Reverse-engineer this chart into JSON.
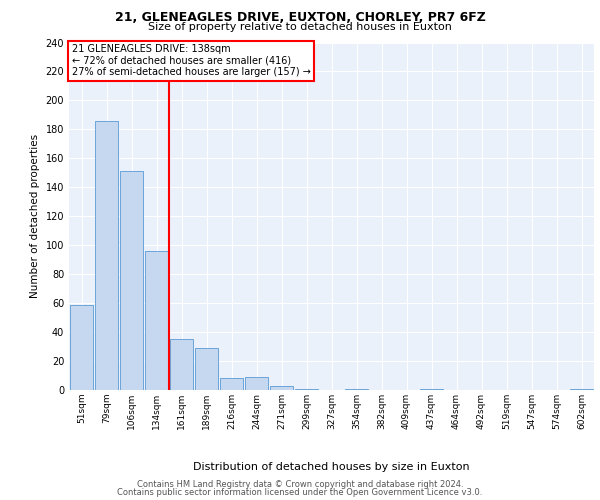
{
  "title1": "21, GLENEAGLES DRIVE, EUXTON, CHORLEY, PR7 6FZ",
  "title2": "Size of property relative to detached houses in Euxton",
  "xlabel": "Distribution of detached houses by size in Euxton",
  "ylabel": "Number of detached properties",
  "bin_labels": [
    "51sqm",
    "79sqm",
    "106sqm",
    "134sqm",
    "161sqm",
    "189sqm",
    "216sqm",
    "244sqm",
    "271sqm",
    "299sqm",
    "327sqm",
    "354sqm",
    "382sqm",
    "409sqm",
    "437sqm",
    "464sqm",
    "492sqm",
    "519sqm",
    "547sqm",
    "574sqm",
    "602sqm"
  ],
  "bar_values": [
    59,
    186,
    151,
    96,
    35,
    29,
    8,
    9,
    3,
    1,
    0,
    1,
    0,
    0,
    1,
    0,
    0,
    0,
    0,
    0,
    1
  ],
  "bar_color": "#c5d8f0",
  "bar_edge_color": "#5b9bd5",
  "vline_x": 3.5,
  "annotation_title": "21 GLENEAGLES DRIVE: 138sqm",
  "annotation_line1": "← 72% of detached houses are smaller (416)",
  "annotation_line2": "27% of semi-detached houses are larger (157) →",
  "footer1": "Contains HM Land Registry data © Crown copyright and database right 2024.",
  "footer2": "Contains public sector information licensed under the Open Government Licence v3.0.",
  "ylim": [
    0,
    240
  ],
  "yticks": [
    0,
    20,
    40,
    60,
    80,
    100,
    120,
    140,
    160,
    180,
    200,
    220,
    240
  ],
  "bg_color": "#eaf1fb",
  "grid_color": "white",
  "vline_color": "red",
  "box_edge_color": "red",
  "box_face_color": "white",
  "title1_fontsize": 9,
  "title2_fontsize": 8,
  "ylabel_fontsize": 7.5,
  "xlabel_fontsize": 8,
  "tick_fontsize": 6.5,
  "ytick_fontsize": 7,
  "footer_fontsize": 6,
  "ann_fontsize": 7
}
